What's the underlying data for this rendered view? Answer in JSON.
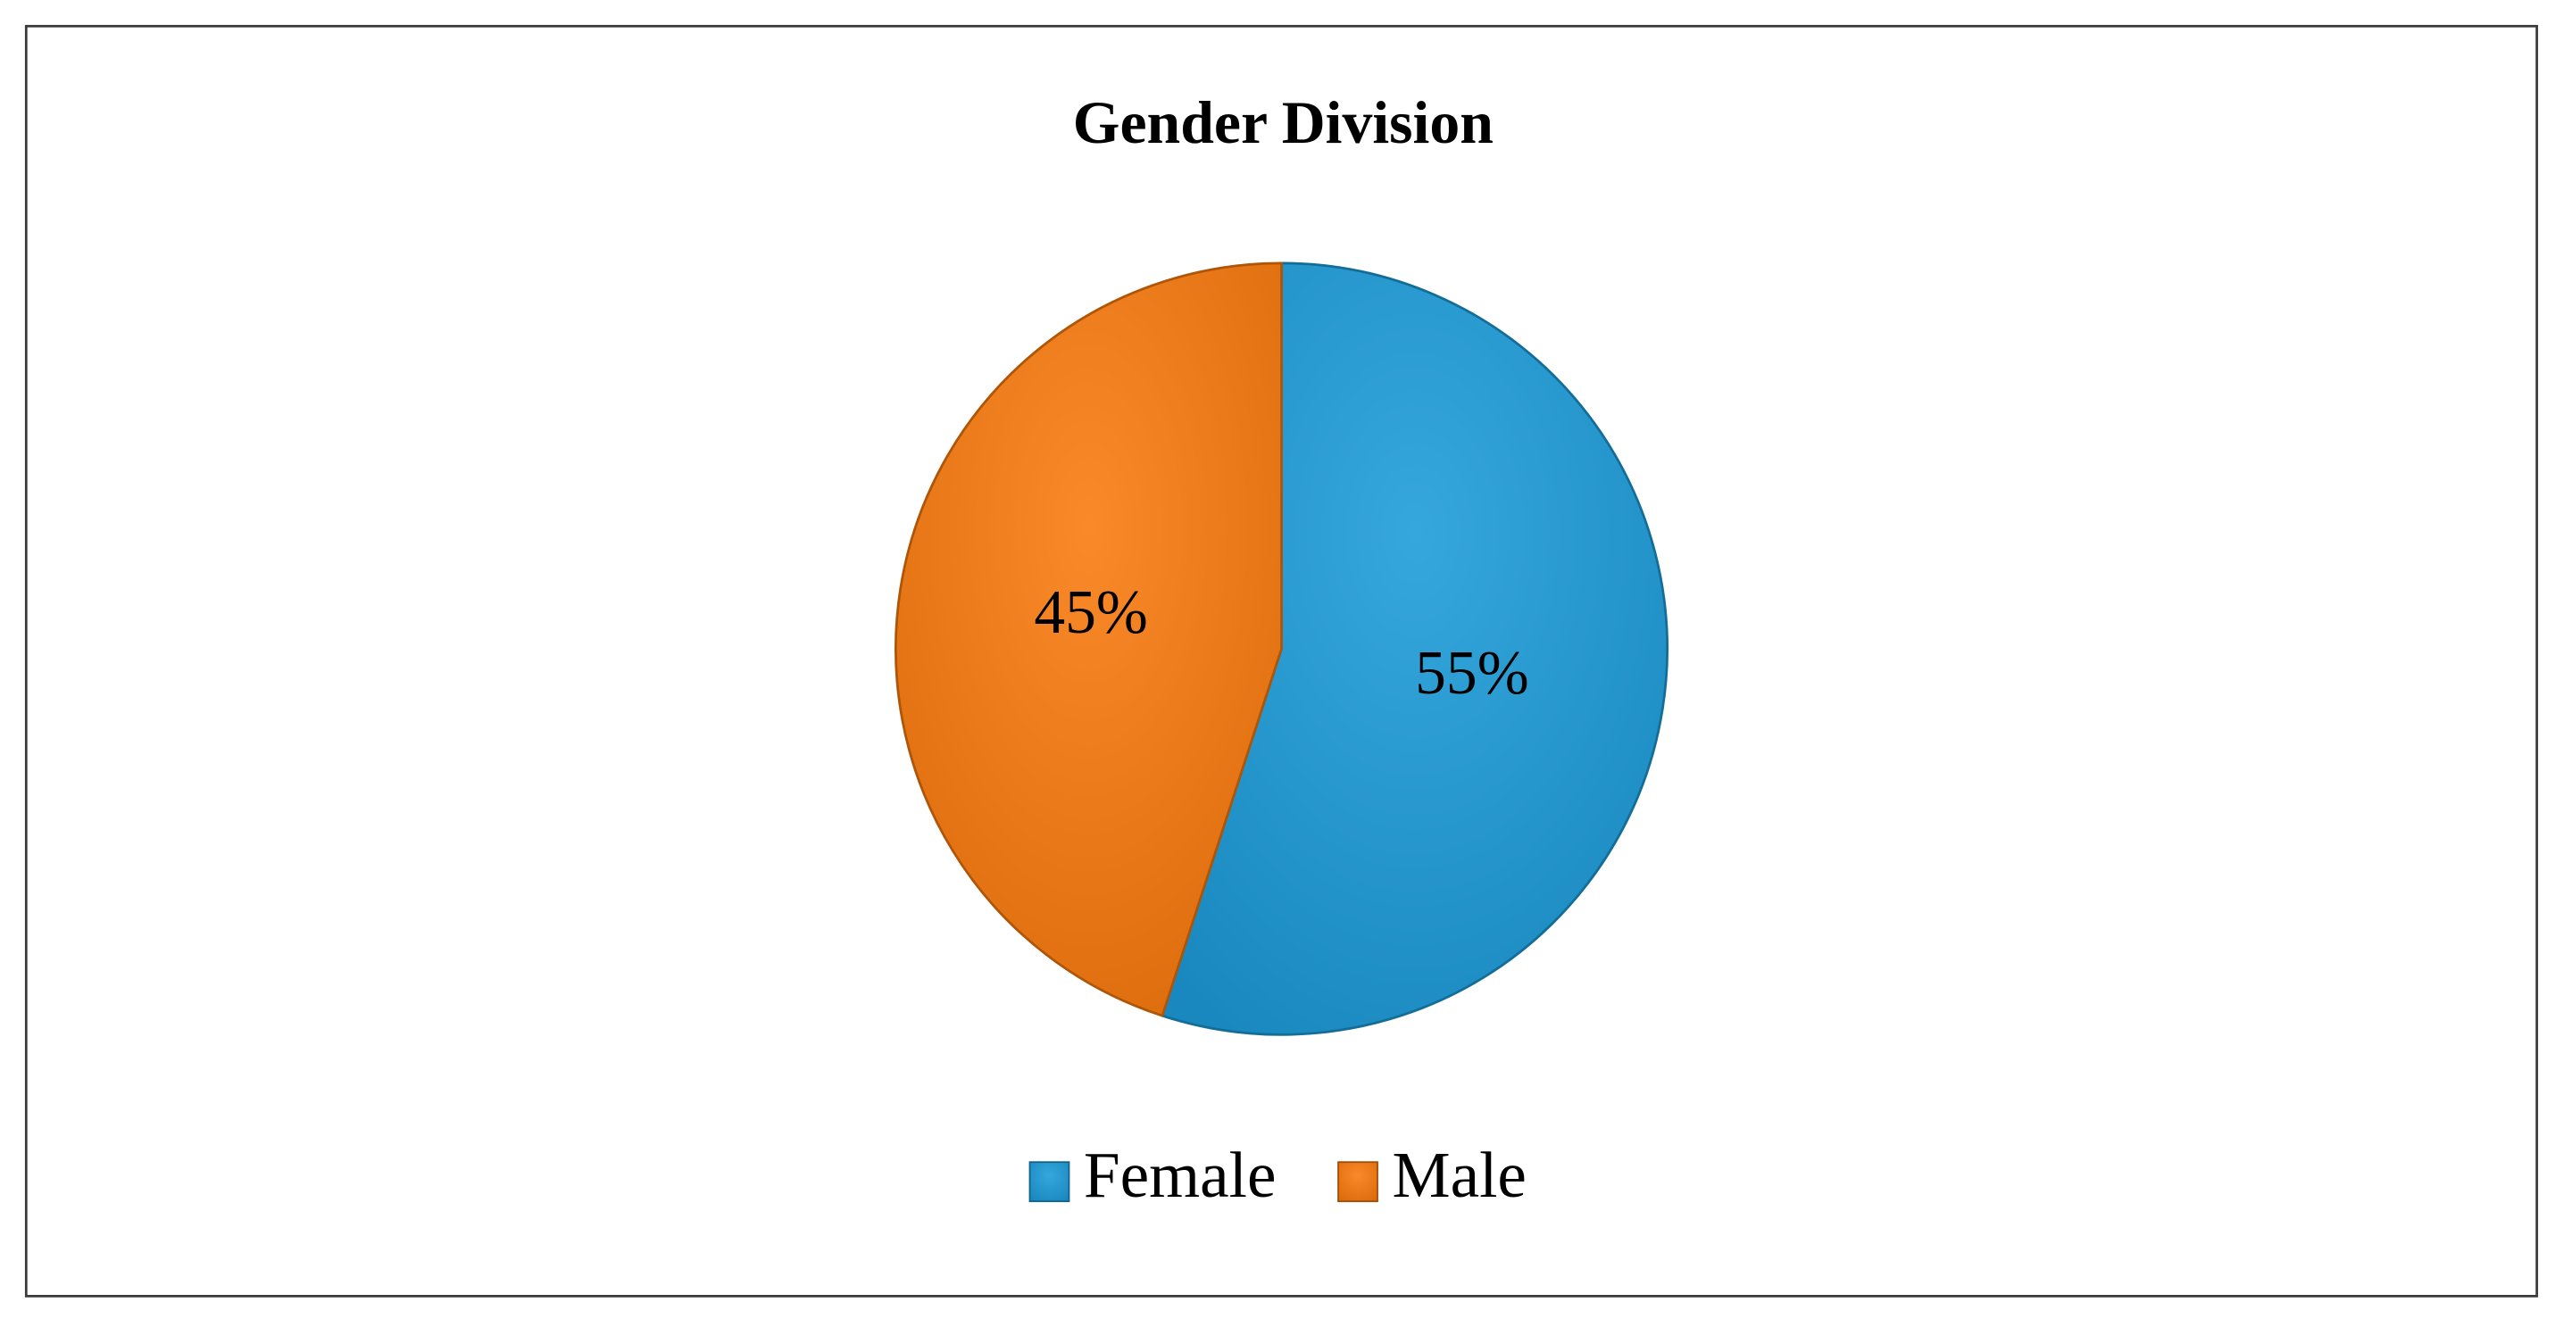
{
  "chart_data": {
    "type": "pie",
    "title": "Gender Division",
    "categories": [
      "Female",
      "Male"
    ],
    "values": [
      55,
      45
    ],
    "value_labels": [
      "55%",
      "45%"
    ],
    "colors": [
      "#1b9bd8",
      "#f97a0c"
    ],
    "legend": "bottom"
  }
}
